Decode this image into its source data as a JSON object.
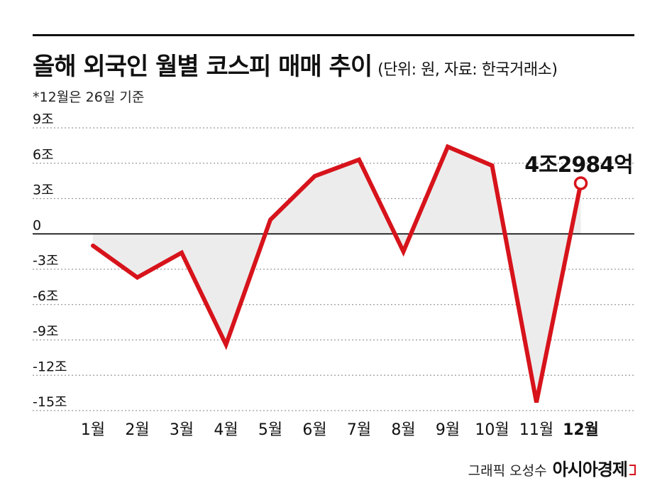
{
  "header": {
    "title": "올해 외국인 월별 코스피 매매 추이",
    "unit_note": "(단위: 원, 자료: 한국거래소)",
    "footnote": "*12월은 26일 기준"
  },
  "credit": {
    "author": "그래픽 오성수",
    "brand": "아시아경제"
  },
  "colors": {
    "line": "#d7131b",
    "area": "#ececec",
    "grid": "#9a9a9a",
    "zero": "#111111"
  },
  "chart_data": {
    "type": "line",
    "title": "올해 외국인 월별 코스피 매매 추이",
    "categories": [
      "1월",
      "2월",
      "3월",
      "4월",
      "5월",
      "6월",
      "7월",
      "8월",
      "9월",
      "10월",
      "11월",
      "12월"
    ],
    "highlight_category": "12월",
    "values": [
      -1.0,
      -3.7,
      -1.6,
      -9.4,
      1.2,
      4.9,
      6.3,
      -1.5,
      7.4,
      5.8,
      -14.3,
      4.2984
    ],
    "y_ticks": [
      9,
      6,
      3,
      0,
      -3,
      -6,
      -9,
      -12,
      -15
    ],
    "y_tick_labels": [
      "9조",
      "6조",
      "3조",
      "0",
      "-3조",
      "-6조",
      "-9조",
      "-12조",
      "-15조"
    ],
    "ylim": [
      -15,
      9
    ],
    "grid": true,
    "fill_to_zero": true,
    "annotation": {
      "category": "12월",
      "label": "4조2984억"
    }
  }
}
